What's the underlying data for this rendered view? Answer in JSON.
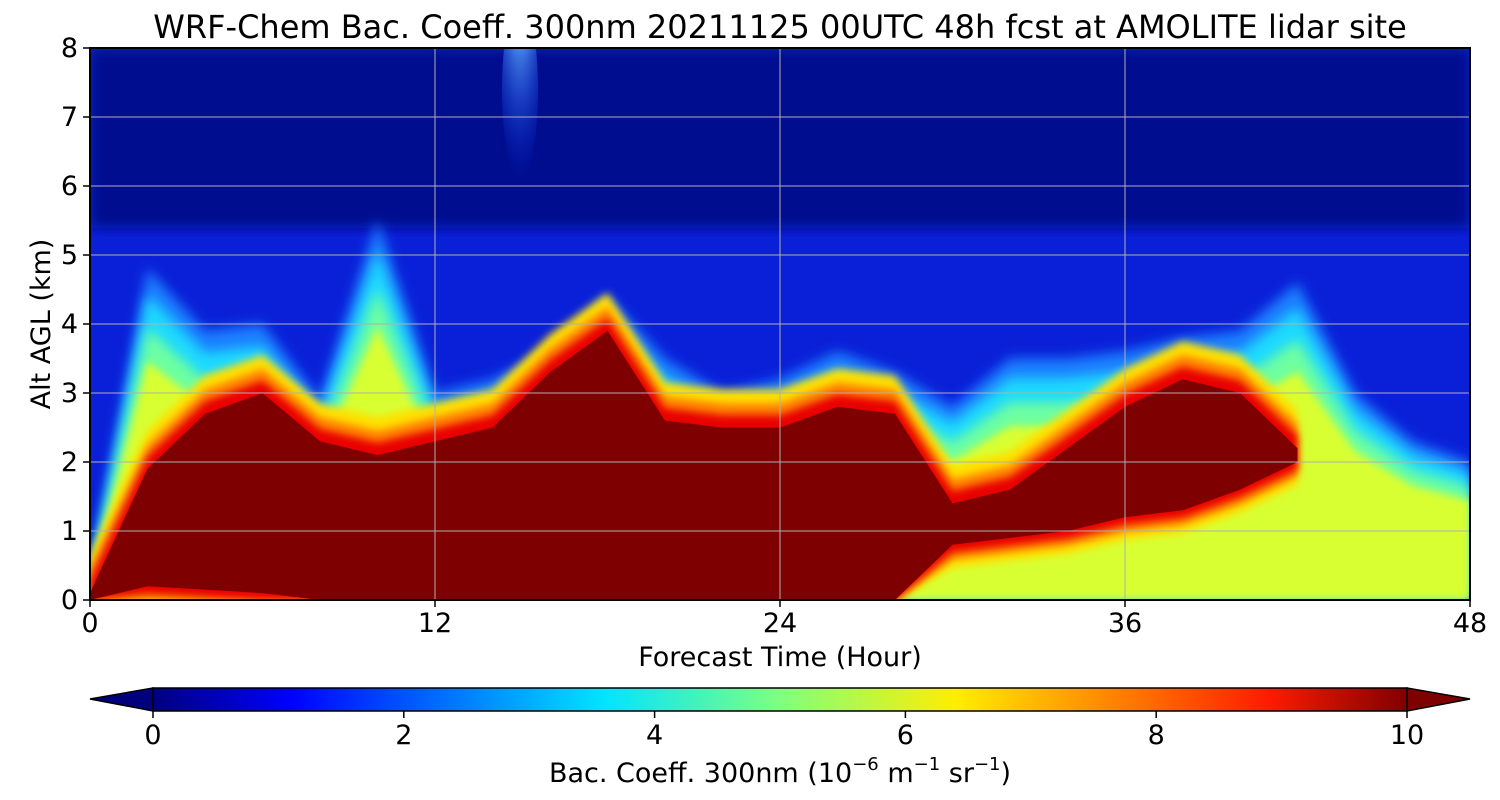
{
  "chart_data": {
    "type": "heatmap",
    "title": "WRF-Chem Bac. Coeff. 300nm  20211125 00UTC 48h fcst at AMOLITE lidar site",
    "xlabel": "Forecast Time (Hour)",
    "ylabel": "Alt AGL (km)",
    "xlim": [
      0,
      48
    ],
    "ylim": [
      0,
      8
    ],
    "x_ticks": [
      "0",
      "12",
      "24",
      "36",
      "48"
    ],
    "y_ticks": [
      "0",
      "1",
      "2",
      "3",
      "4",
      "5",
      "6",
      "7",
      "8"
    ],
    "grid": true,
    "colormap": "jet",
    "colorbar": {
      "orientation": "horizontal",
      "position": "bottom",
      "range": [
        0,
        10
      ],
      "extend": "both",
      "ticks": [
        "0",
        "2",
        "4",
        "6",
        "8",
        "10"
      ],
      "label_main": "Bac. Coeff. 300nm  (10",
      "label_exp1": "−6",
      "label_mid": " m",
      "label_exp2": "−1",
      "label_mid2": " sr",
      "label_exp3": "−1",
      "label_end": ")"
    },
    "x_hours": [
      0,
      2,
      4,
      6,
      8,
      10,
      12,
      14,
      16,
      18,
      20,
      22,
      24,
      26,
      28,
      30,
      32,
      34,
      36,
      38,
      40,
      42,
      44,
      46,
      48
    ],
    "layer_top_km": [
      0.1,
      1.9,
      2.7,
      3.0,
      2.3,
      2.1,
      2.3,
      2.5,
      3.3,
      3.9,
      2.6,
      2.5,
      2.5,
      2.8,
      2.7,
      1.4,
      1.6,
      2.2,
      2.8,
      3.2,
      3.0,
      2.2,
      0,
      0,
      0
    ],
    "layer_bottom_km": [
      0,
      0.2,
      0.15,
      0.1,
      0,
      0,
      0,
      0,
      0,
      0,
      0,
      0,
      0,
      0,
      0,
      0.8,
      0.9,
      1.0,
      1.2,
      1.3,
      1.6,
      2.0,
      0,
      0,
      0
    ],
    "aerosol_top_km": [
      0.3,
      4.8,
      3.9,
      4.0,
      2.9,
      5.5,
      3.0,
      3.2,
      3.6,
      4.4,
      3.5,
      3.0,
      3.2,
      3.6,
      3.3,
      2.8,
      3.5,
      3.5,
      3.6,
      3.8,
      3.9,
      4.6,
      3.0,
      2.3,
      2.0
    ]
  }
}
